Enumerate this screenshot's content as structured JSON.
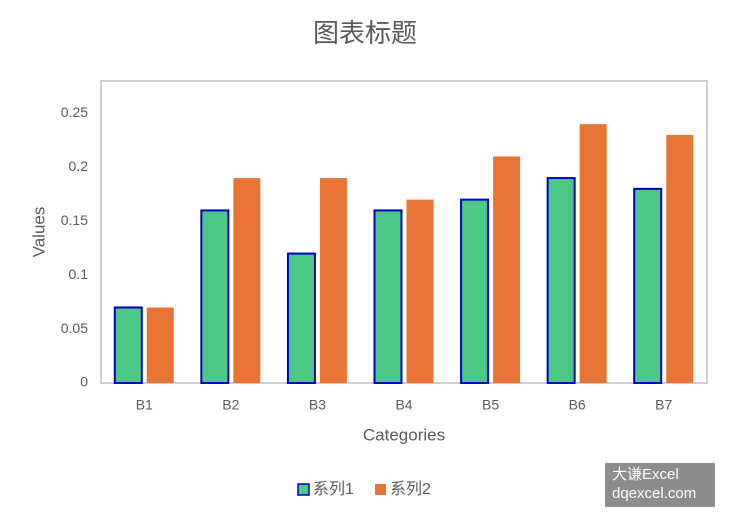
{
  "chart_data": {
    "type": "bar",
    "title": "图表标题",
    "x_label": "Categories",
    "y_label": "Values",
    "categories": [
      "B1",
      "B2",
      "B3",
      "B4",
      "B5",
      "B6",
      "B7"
    ],
    "series": [
      {
        "name": "系列1",
        "color": "#4dc987",
        "edge_color": "#0000c0",
        "values": [
          0.07,
          0.16,
          0.12,
          0.16,
          0.17,
          0.19,
          0.18
        ]
      },
      {
        "name": "系列2",
        "color": "#e87433",
        "values": [
          0.07,
          0.19,
          0.19,
          0.17,
          0.21,
          0.24,
          0.23
        ]
      }
    ],
    "ylim": [
      0,
      0.28
    ],
    "yticks": [
      0,
      0.05,
      0.1,
      0.15,
      0.2,
      0.25
    ],
    "grid": false,
    "legend": "bottom"
  },
  "watermark": {
    "line1": "大谦Excel",
    "line2": "dqexcel.com"
  }
}
